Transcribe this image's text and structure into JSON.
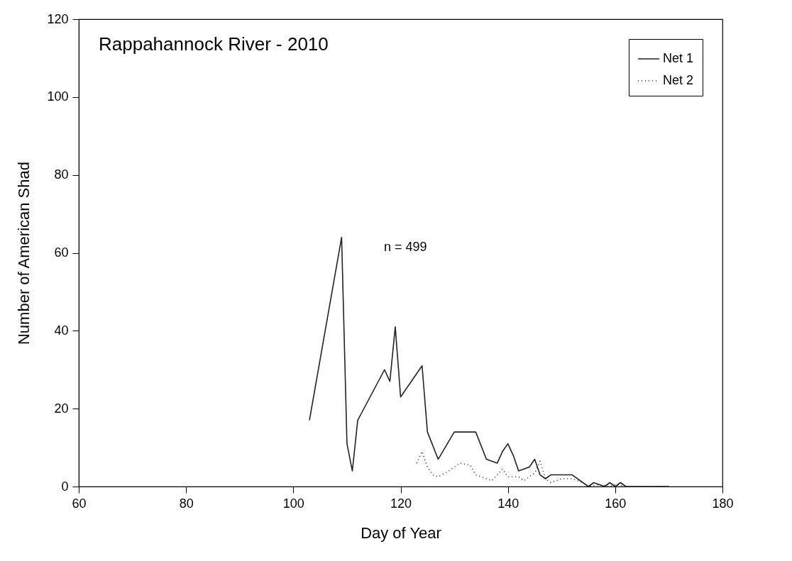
{
  "chart_data": {
    "type": "line",
    "title": "Rappahannock River - 2010",
    "xlabel": "Day of Year",
    "ylabel": "Number of American Shad",
    "annotations": [
      "n = 499"
    ],
    "series": [
      {
        "name": "Net 1",
        "color": "#222222",
        "line_style": "solid",
        "x": [
          103,
          109,
          110,
          111,
          112,
          117,
          118,
          119,
          120,
          124,
          125,
          127,
          130,
          134,
          136,
          138,
          139,
          140,
          141,
          142,
          144,
          145,
          146,
          147,
          148,
          152,
          155,
          156,
          158,
          159,
          160,
          161,
          162,
          170
        ],
        "values": [
          17,
          64,
          11,
          4,
          17,
          30,
          27,
          41,
          23,
          31,
          14,
          7,
          14,
          14,
          7,
          6,
          9,
          11,
          8,
          4,
          5,
          7,
          3,
          2,
          3,
          3,
          0,
          1,
          0,
          1,
          0,
          1,
          0,
          0
        ]
      },
      {
        "name": "Net 2",
        "color": "#222222",
        "line_style": "dotted",
        "x": [
          123,
          124,
          125,
          126,
          127,
          129,
          131,
          133,
          134,
          136,
          137,
          139,
          140,
          142,
          143,
          145,
          146,
          147,
          148,
          150,
          152,
          154,
          155,
          157,
          159,
          160,
          162,
          170
        ],
        "values": [
          6,
          9,
          5,
          3,
          2.5,
          4,
          6,
          5.5,
          3,
          2,
          1.5,
          4.5,
          2.5,
          2.5,
          1.5,
          3.5,
          6.5,
          2,
          1,
          2,
          2,
          1,
          0,
          0.5,
          0,
          0.5,
          0,
          0
        ]
      }
    ],
    "xlim": [
      60,
      180
    ],
    "xticks": [
      60,
      80,
      100,
      120,
      140,
      160,
      180
    ],
    "ylim": [
      0,
      120
    ],
    "yticks": [
      0,
      20,
      40,
      60,
      80,
      100,
      120
    ],
    "grid": false,
    "legend": "top right",
    "marker": "none"
  }
}
